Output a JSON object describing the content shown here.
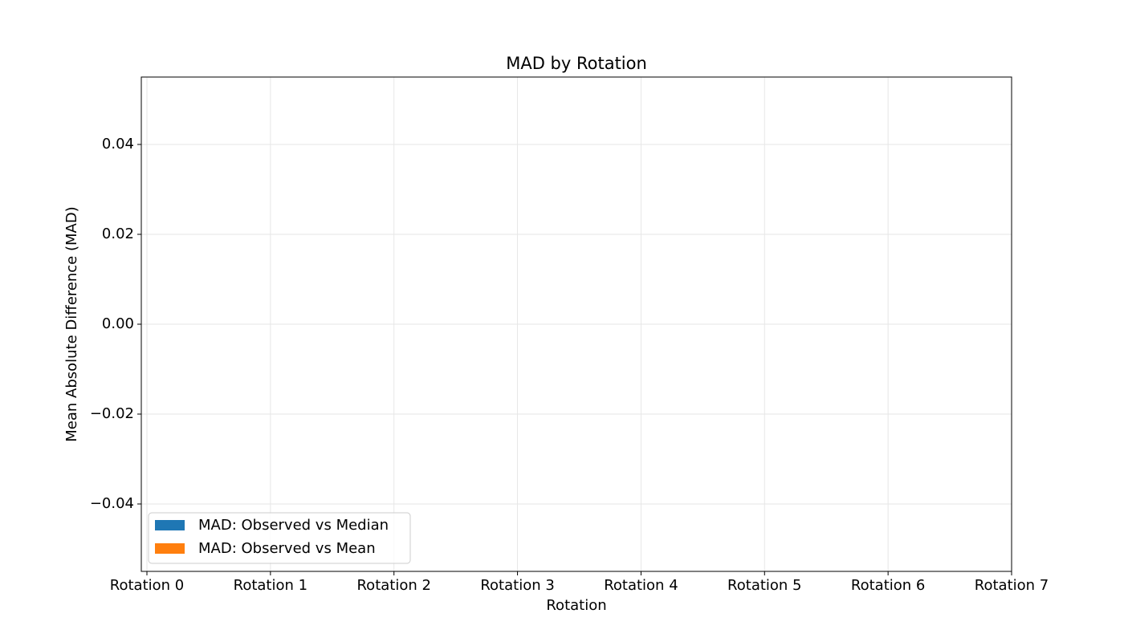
{
  "chart_data": {
    "type": "bar",
    "title": "MAD by Rotation",
    "x_label": "Rotation",
    "y_label": "Mean Absolute Difference (MAD)",
    "categories": [
      "Rotation 0",
      "Rotation 1",
      "Rotation 2",
      "Rotation 3",
      "Rotation 4",
      "Rotation 5",
      "Rotation 6",
      "Rotation 7"
    ],
    "series": [
      {
        "name": "MAD: Observed vs Median",
        "color": "#1f77b4",
        "values": [
          0,
          0,
          0,
          0,
          0,
          0,
          0,
          0
        ]
      },
      {
        "name": "MAD: Observed vs Mean",
        "color": "#ff7f0e",
        "values": [
          0,
          0,
          0,
          0,
          0,
          0,
          0,
          0
        ]
      }
    ],
    "ylim": [
      -0.055,
      0.055
    ],
    "yticks": [
      {
        "value": -0.04,
        "label": "−0.04"
      },
      {
        "value": -0.02,
        "label": "−0.02"
      },
      {
        "value": 0,
        "label": "0.00"
      },
      0.02,
      0.04
    ],
    "grid": true,
    "legend": "lower left"
  }
}
